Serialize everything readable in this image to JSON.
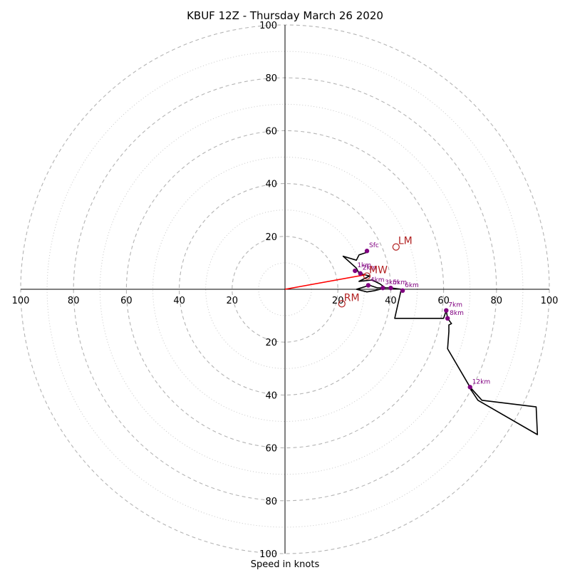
{
  "chart_data": {
    "type": "hodograph",
    "title": "KBUF 12Z - Thursday March 26 2020",
    "xlabel": "Speed in knots",
    "units": "knots",
    "max_speed": 100,
    "ring_major": [
      20,
      40,
      60,
      80,
      100
    ],
    "ring_minor": [
      10,
      30,
      50,
      70,
      90
    ],
    "tick_labels": {
      "x_left": [
        "100",
        "80",
        "60",
        "40",
        "20"
      ],
      "x_right": [
        "20",
        "40",
        "60",
        "80",
        "100"
      ],
      "y_up": [
        "20",
        "40",
        "60",
        "80",
        "100"
      ],
      "y_down": [
        "20",
        "40",
        "60",
        "80",
        "100"
      ]
    },
    "trace_color": "#000000",
    "trace": [
      [
        31,
        14
      ],
      [
        28,
        13
      ],
      [
        27,
        11
      ],
      [
        22,
        12.5
      ],
      [
        27,
        8
      ],
      [
        28,
        6
      ],
      [
        32,
        5
      ],
      [
        28,
        3
      ],
      [
        33,
        3.5
      ],
      [
        36,
        2
      ],
      [
        38,
        0.5
      ],
      [
        34,
        -0.5
      ],
      [
        31,
        -1
      ],
      [
        27,
        0
      ],
      [
        32,
        1.5
      ],
      [
        35,
        0.5
      ],
      [
        40,
        0.5
      ],
      [
        44,
        0
      ],
      [
        41.5,
        -11
      ],
      [
        60,
        -11
      ],
      [
        61,
        -8
      ],
      [
        61.5,
        -11
      ],
      [
        63,
        -13
      ],
      [
        62,
        -13.5
      ],
      [
        62,
        -16
      ],
      [
        61.5,
        -22.5
      ],
      [
        70,
        -37
      ],
      [
        74.5,
        -42
      ],
      [
        95,
        -44.5
      ],
      [
        95.5,
        -55
      ],
      [
        73,
        -42
      ],
      [
        71,
        -39
      ],
      [
        70,
        -37.5
      ]
    ],
    "height_color": "#800080",
    "height_points": [
      {
        "label": "Sfc",
        "u": 31,
        "v": 14.5
      },
      {
        "label": "1km",
        "u": 26.5,
        "v": 7
      },
      {
        "label": "2km",
        "u": 28.5,
        "v": 6
      },
      {
        "label": "3km",
        "u": 37,
        "v": 0.5
      },
      {
        "label": "4km",
        "u": 31.5,
        "v": 1.5
      },
      {
        "label": "5km",
        "u": 40,
        "v": 0.5
      },
      {
        "label": "6km",
        "u": 44.5,
        "v": -0.5
      },
      {
        "label": "7km",
        "u": 61,
        "v": -8
      },
      {
        "label": "8km",
        "u": 61.5,
        "v": -11
      },
      {
        "label": "12km",
        "u": 70,
        "v": -37
      }
    ],
    "motion_color": "#b22222",
    "storm_motion": [
      {
        "label": "LM",
        "u": 42,
        "v": 16
      },
      {
        "label": "MW",
        "u": 31,
        "v": 5
      },
      {
        "label": "RM",
        "u": 21.5,
        "v": -5.5
      }
    ],
    "shear_vector": {
      "from": [
        0,
        0
      ],
      "to": [
        30.5,
        5.5
      ],
      "color": "#ff0000"
    }
  }
}
